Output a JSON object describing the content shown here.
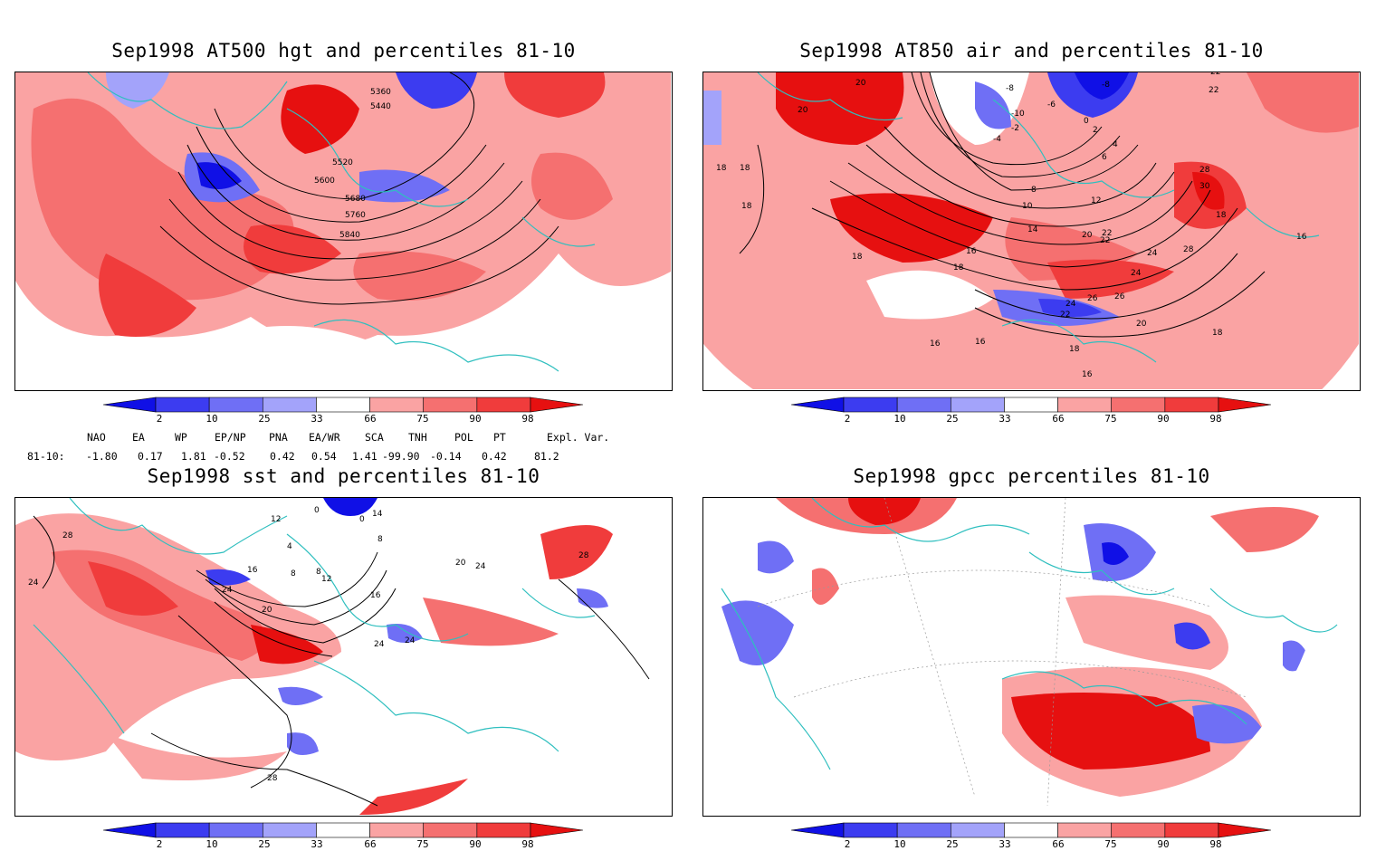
{
  "panels": [
    {
      "id": "p1",
      "title": "Sep1998 AT500 hgt and percentiles 81-10",
      "contour_labels": [
        "5360",
        "5440",
        "5520",
        "5600",
        "5680",
        "5760",
        "5840"
      ]
    },
    {
      "id": "p2",
      "title": "Sep1998 AT850 air and percentiles 81-10",
      "contour_labels": [
        "20",
        "20",
        "-8",
        "-8",
        "-6",
        "-10",
        "0",
        "2",
        "4",
        "6",
        "-2",
        "-4",
        "8",
        "10",
        "12",
        "14",
        "16",
        "18",
        "18",
        "18",
        "18",
        "20",
        "22",
        "24",
        "26",
        "22",
        "22",
        "28",
        "28",
        "30",
        "18",
        "16",
        "16",
        "16",
        "18",
        "20",
        "22",
        "24",
        "26",
        "24",
        "22",
        "18",
        "16",
        "18"
      ]
    },
    {
      "id": "p3",
      "title": "Sep1998 sst and percentiles 81-10",
      "contour_labels": [
        "28",
        "24",
        "0",
        "0",
        "14",
        "12",
        "8",
        "4",
        "8",
        "24",
        "16",
        "20",
        "12",
        "8",
        "16",
        "20",
        "24",
        "24",
        "24",
        "28",
        "28"
      ]
    },
    {
      "id": "p4",
      "title": "Sep1998 gpcc percentiles 81-10",
      "contour_labels": []
    }
  ],
  "colorbar": {
    "labels": [
      "2",
      "10",
      "25",
      "33",
      "66",
      "75",
      "90",
      "98"
    ],
    "colors": [
      "#1010e6",
      "#3c3cf0",
      "#6f6ff5",
      "#a3a3fa",
      "#ffffff",
      "#faa3a3",
      "#f57070",
      "#f03c3c",
      "#e61010"
    ]
  },
  "indices": {
    "row_label": "81-10:",
    "names": [
      "NAO",
      "EA",
      "WP",
      "EP/NP",
      "PNA",
      "EA/WR",
      "SCA",
      "TNH",
      "POL",
      "PT",
      "Expl. Var."
    ],
    "values": [
      "-1.80",
      "0.17",
      "1.81",
      "-0.52",
      "0.42",
      "0.54",
      "1.41",
      "-99.90",
      "-0.14",
      "0.42",
      "81.2"
    ]
  },
  "colors": {
    "coast": "#2fbfbf",
    "contour": "#000000",
    "grid": "#999999"
  }
}
